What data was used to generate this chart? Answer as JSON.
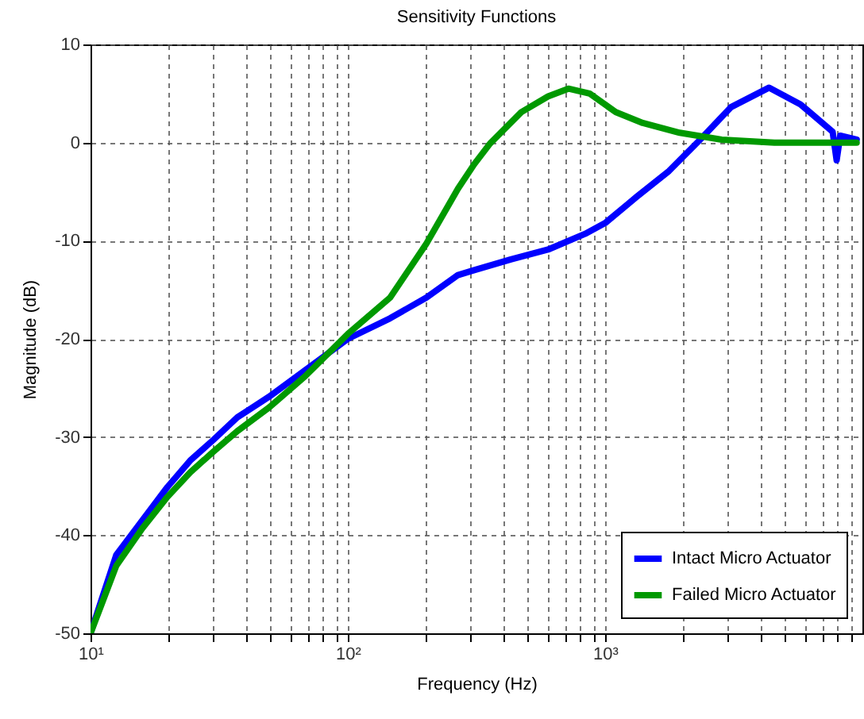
{
  "chart_data": {
    "type": "line",
    "title": "Sensitivity Functions",
    "xlabel": "Frequency (Hz)",
    "ylabel": "Magnitude (dB)",
    "log": "x",
    "grid": true,
    "legend": "bottom right",
    "line_style": "solid",
    "xlim": [
      10,
      10000
    ],
    "ylim": [
      -50,
      10
    ],
    "xticks": [
      {
        "value": 10,
        "label": "10¹"
      },
      {
        "value": 20,
        "label": null
      },
      {
        "value": 30,
        "label": null
      },
      {
        "value": 40,
        "label": null
      },
      {
        "value": 50,
        "label": null
      },
      {
        "value": 60,
        "label": null
      },
      {
        "value": 70,
        "label": null
      },
      {
        "value": 80,
        "label": null
      },
      {
        "value": 90,
        "label": null
      },
      {
        "value": 100,
        "label": "10²"
      },
      {
        "value": 200,
        "label": null
      },
      {
        "value": 300,
        "label": null
      },
      {
        "value": 400,
        "label": null
      },
      {
        "value": 500,
        "label": null
      },
      {
        "value": 600,
        "label": null
      },
      {
        "value": 700,
        "label": null
      },
      {
        "value": 800,
        "label": null
      },
      {
        "value": 900,
        "label": null
      },
      {
        "value": 1000,
        "label": "10³"
      },
      {
        "value": 2000,
        "label": null
      },
      {
        "value": 3000,
        "label": null
      },
      {
        "value": 4000,
        "label": null
      },
      {
        "value": 5000,
        "label": null
      },
      {
        "value": 6000,
        "label": null
      },
      {
        "value": 7000,
        "label": null
      },
      {
        "value": 8000,
        "label": null
      },
      {
        "value": 9000,
        "label": null
      }
    ],
    "yticks": [
      -50,
      -40,
      -30,
      -20,
      -10,
      0,
      10
    ],
    "series": [
      {
        "name": "Intact Micro Actuator",
        "color": "#0000ff",
        "x": [
          10,
          12.6,
          15.9,
          19.9,
          24.4,
          30,
          37.2,
          49.4,
          68.3,
          100,
          146,
          202,
          268,
          310,
          430,
          600,
          836,
          1000,
          1330,
          1770,
          2340,
          3080,
          4340,
          5740,
          7660,
          7940,
          8200,
          9500
        ],
        "values": [
          -50,
          -42,
          -38.5,
          -35.1,
          -32.4,
          -30.3,
          -28,
          -25.9,
          -23.2,
          -20,
          -17.9,
          -15.8,
          -13.5,
          -13,
          -11.9,
          -10.9,
          -9.3,
          -8.2,
          -5.5,
          -2.9,
          0.3,
          3.6,
          5.6,
          3.9,
          1.1,
          -1.8,
          0.7,
          0.3
        ]
      },
      {
        "name": "Failed Micro Actuator",
        "color": "#009900",
        "x": [
          10,
          12.6,
          15.9,
          19.9,
          24.4,
          30,
          37.2,
          49.4,
          68.3,
          100,
          146,
          202,
          268,
          310,
          357,
          472,
          600,
          720,
          870,
          1100,
          1400,
          1950,
          2840,
          4550,
          9500
        ],
        "values": [
          -50,
          -43.1,
          -39.3,
          -36.1,
          -33.6,
          -31.5,
          -29.4,
          -27,
          -23.8,
          -19.5,
          -15.8,
          -10.3,
          -4.7,
          -2.2,
          -0.1,
          3.1,
          4.7,
          5.5,
          5,
          3.1,
          2,
          1,
          0.3,
          0,
          0
        ]
      }
    ]
  }
}
